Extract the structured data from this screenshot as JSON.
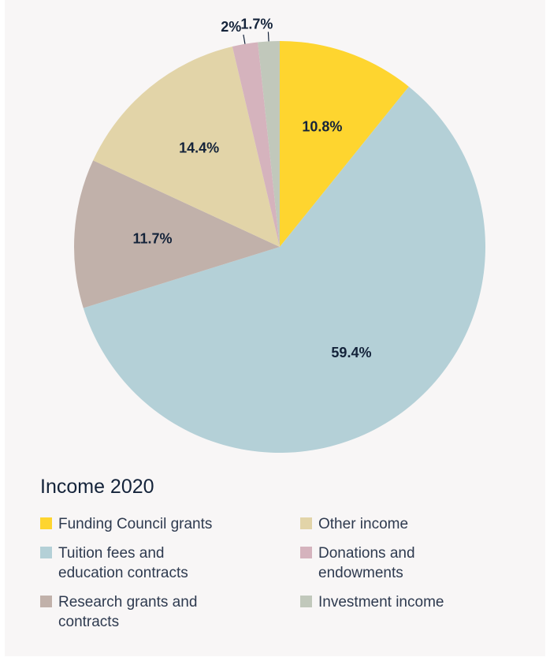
{
  "chart_data": {
    "type": "pie",
    "title": "Income 2020",
    "slices": [
      {
        "name": "Funding Council grants",
        "value": 10.8,
        "label": "10.8%",
        "color": "#fed52f"
      },
      {
        "name": "Tuition fees and education contracts",
        "value": 59.4,
        "label": "59.4%",
        "color": "#b4d0d7"
      },
      {
        "name": "Research grants and contracts",
        "value": 11.7,
        "label": "11.7%",
        "color": "#c1b1aa"
      },
      {
        "name": "Other income",
        "value": 14.4,
        "label": "14.4%",
        "color": "#e2d4a8"
      },
      {
        "name": "Donations and endowments",
        "value": 2,
        "label": "2%",
        "color": "#d5b3bd"
      },
      {
        "name": "Investment income",
        "value": 1.7,
        "label": "1.7%",
        "color": "#c1c8bb"
      }
    ],
    "legend": {
      "position": "bottom",
      "items": [
        {
          "label": "Funding Council grants",
          "color": "#fed52f"
        },
        {
          "label": "Other income",
          "color": "#e2d4a8"
        },
        {
          "label": "Tuition fees and education contracts",
          "color": "#b4d0d7"
        },
        {
          "label": "Donations and endowments",
          "color": "#d5b3bd"
        },
        {
          "label": "Research grants and contracts",
          "color": "#c1b1aa"
        },
        {
          "label": "Investment income",
          "color": "#c1c8bb"
        }
      ]
    }
  },
  "colors": {
    "background": "#f8f6f6",
    "text": "#14233a"
  }
}
